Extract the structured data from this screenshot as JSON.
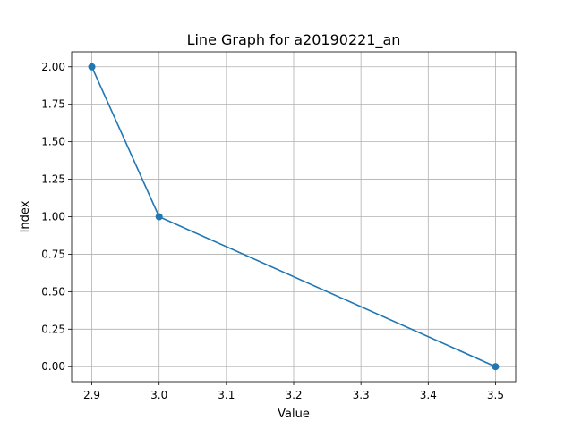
{
  "chart_data": {
    "type": "line",
    "title": "Line Graph for a20190221_an",
    "xlabel": "Value",
    "ylabel": "Index",
    "x": [
      2.9,
      3.0,
      3.5
    ],
    "series": [
      {
        "values": [
          2,
          1,
          0
        ],
        "color": "#1f77b4",
        "marker": "circle"
      }
    ],
    "xlim": [
      2.87,
      3.53
    ],
    "ylim": [
      -0.1,
      2.1
    ],
    "xticks": [
      "2.9",
      "3.0",
      "3.1",
      "3.2",
      "3.3",
      "3.4",
      "3.5"
    ],
    "yticks": [
      "0.00",
      "0.25",
      "0.50",
      "0.75",
      "1.00",
      "1.25",
      "1.50",
      "1.75",
      "2.00"
    ],
    "grid": true,
    "legend": "none"
  }
}
